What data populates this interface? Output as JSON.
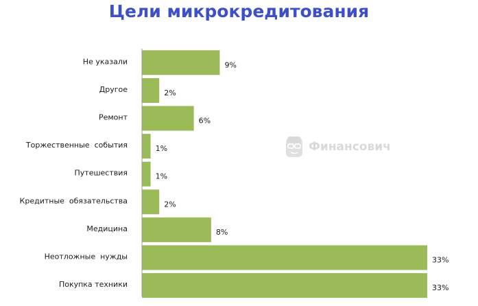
{
  "chart_data": {
    "type": "bar",
    "orientation": "horizontal",
    "title": "Цели микрокредитования",
    "categories": [
      "Не указали",
      "Другое",
      "Ремонт",
      "Торжественные  события",
      "Путешествия",
      "Кредитные  обязательства",
      "Медицина",
      "Неотложные  нужды",
      "Покупка техники"
    ],
    "values": [
      9,
      2,
      6,
      1,
      1,
      2,
      8,
      33,
      33
    ],
    "value_labels": [
      "9%",
      "2%",
      "6%",
      "1%",
      "1%",
      "2%",
      "8%",
      "33%",
      "33%"
    ],
    "xlim": [
      0,
      33
    ],
    "bar_color": "#9bbb59",
    "grid": false,
    "legend": "none"
  },
  "watermark": {
    "text": "Финансович",
    "icon": "glasses-face-icon"
  },
  "colors": {
    "title": "#3d4fc9",
    "axis": "#9a9a9a"
  }
}
